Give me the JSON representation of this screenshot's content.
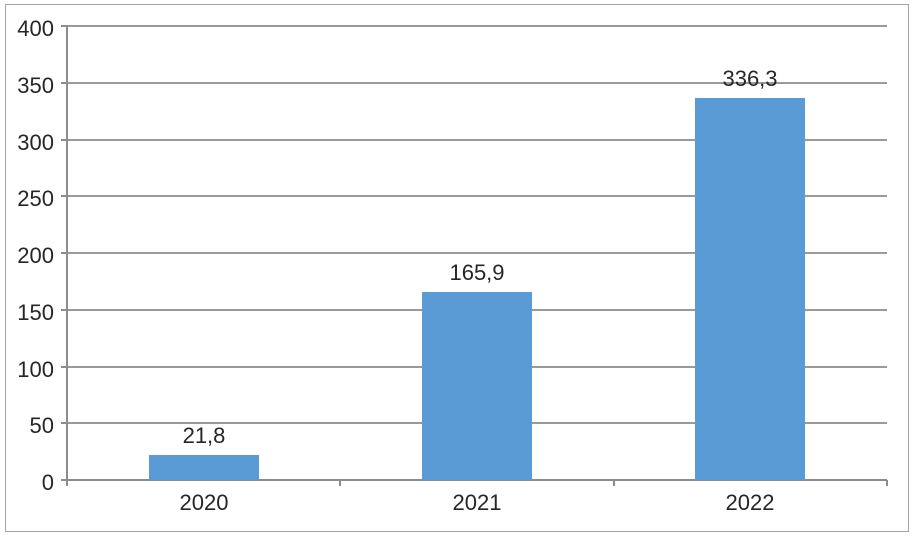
{
  "chart_data": {
    "type": "bar",
    "title": "",
    "xlabel": "",
    "ylabel": "",
    "categories": [
      "2020",
      "2021",
      "2022"
    ],
    "values": [
      21.8,
      165.9,
      336.3
    ],
    "data_labels": [
      "21,8",
      "165,9",
      "336,3"
    ],
    "y_ticks": [
      0,
      50,
      100,
      150,
      200,
      250,
      300,
      350,
      400
    ],
    "y_tick_labels": [
      "0",
      "50",
      "100",
      "150",
      "200",
      "250",
      "300",
      "350",
      "400"
    ],
    "ylim": [
      0,
      400
    ],
    "grid": "horizontal",
    "legend": "none",
    "decimal_separator": ","
  },
  "colors": {
    "bar_fill": "#5b9bd5",
    "gridline": "#9a9a9a",
    "axis": "#8c8c8c",
    "text": "#262626",
    "frame_border": "#a6a6a6",
    "background": "#ffffff"
  }
}
